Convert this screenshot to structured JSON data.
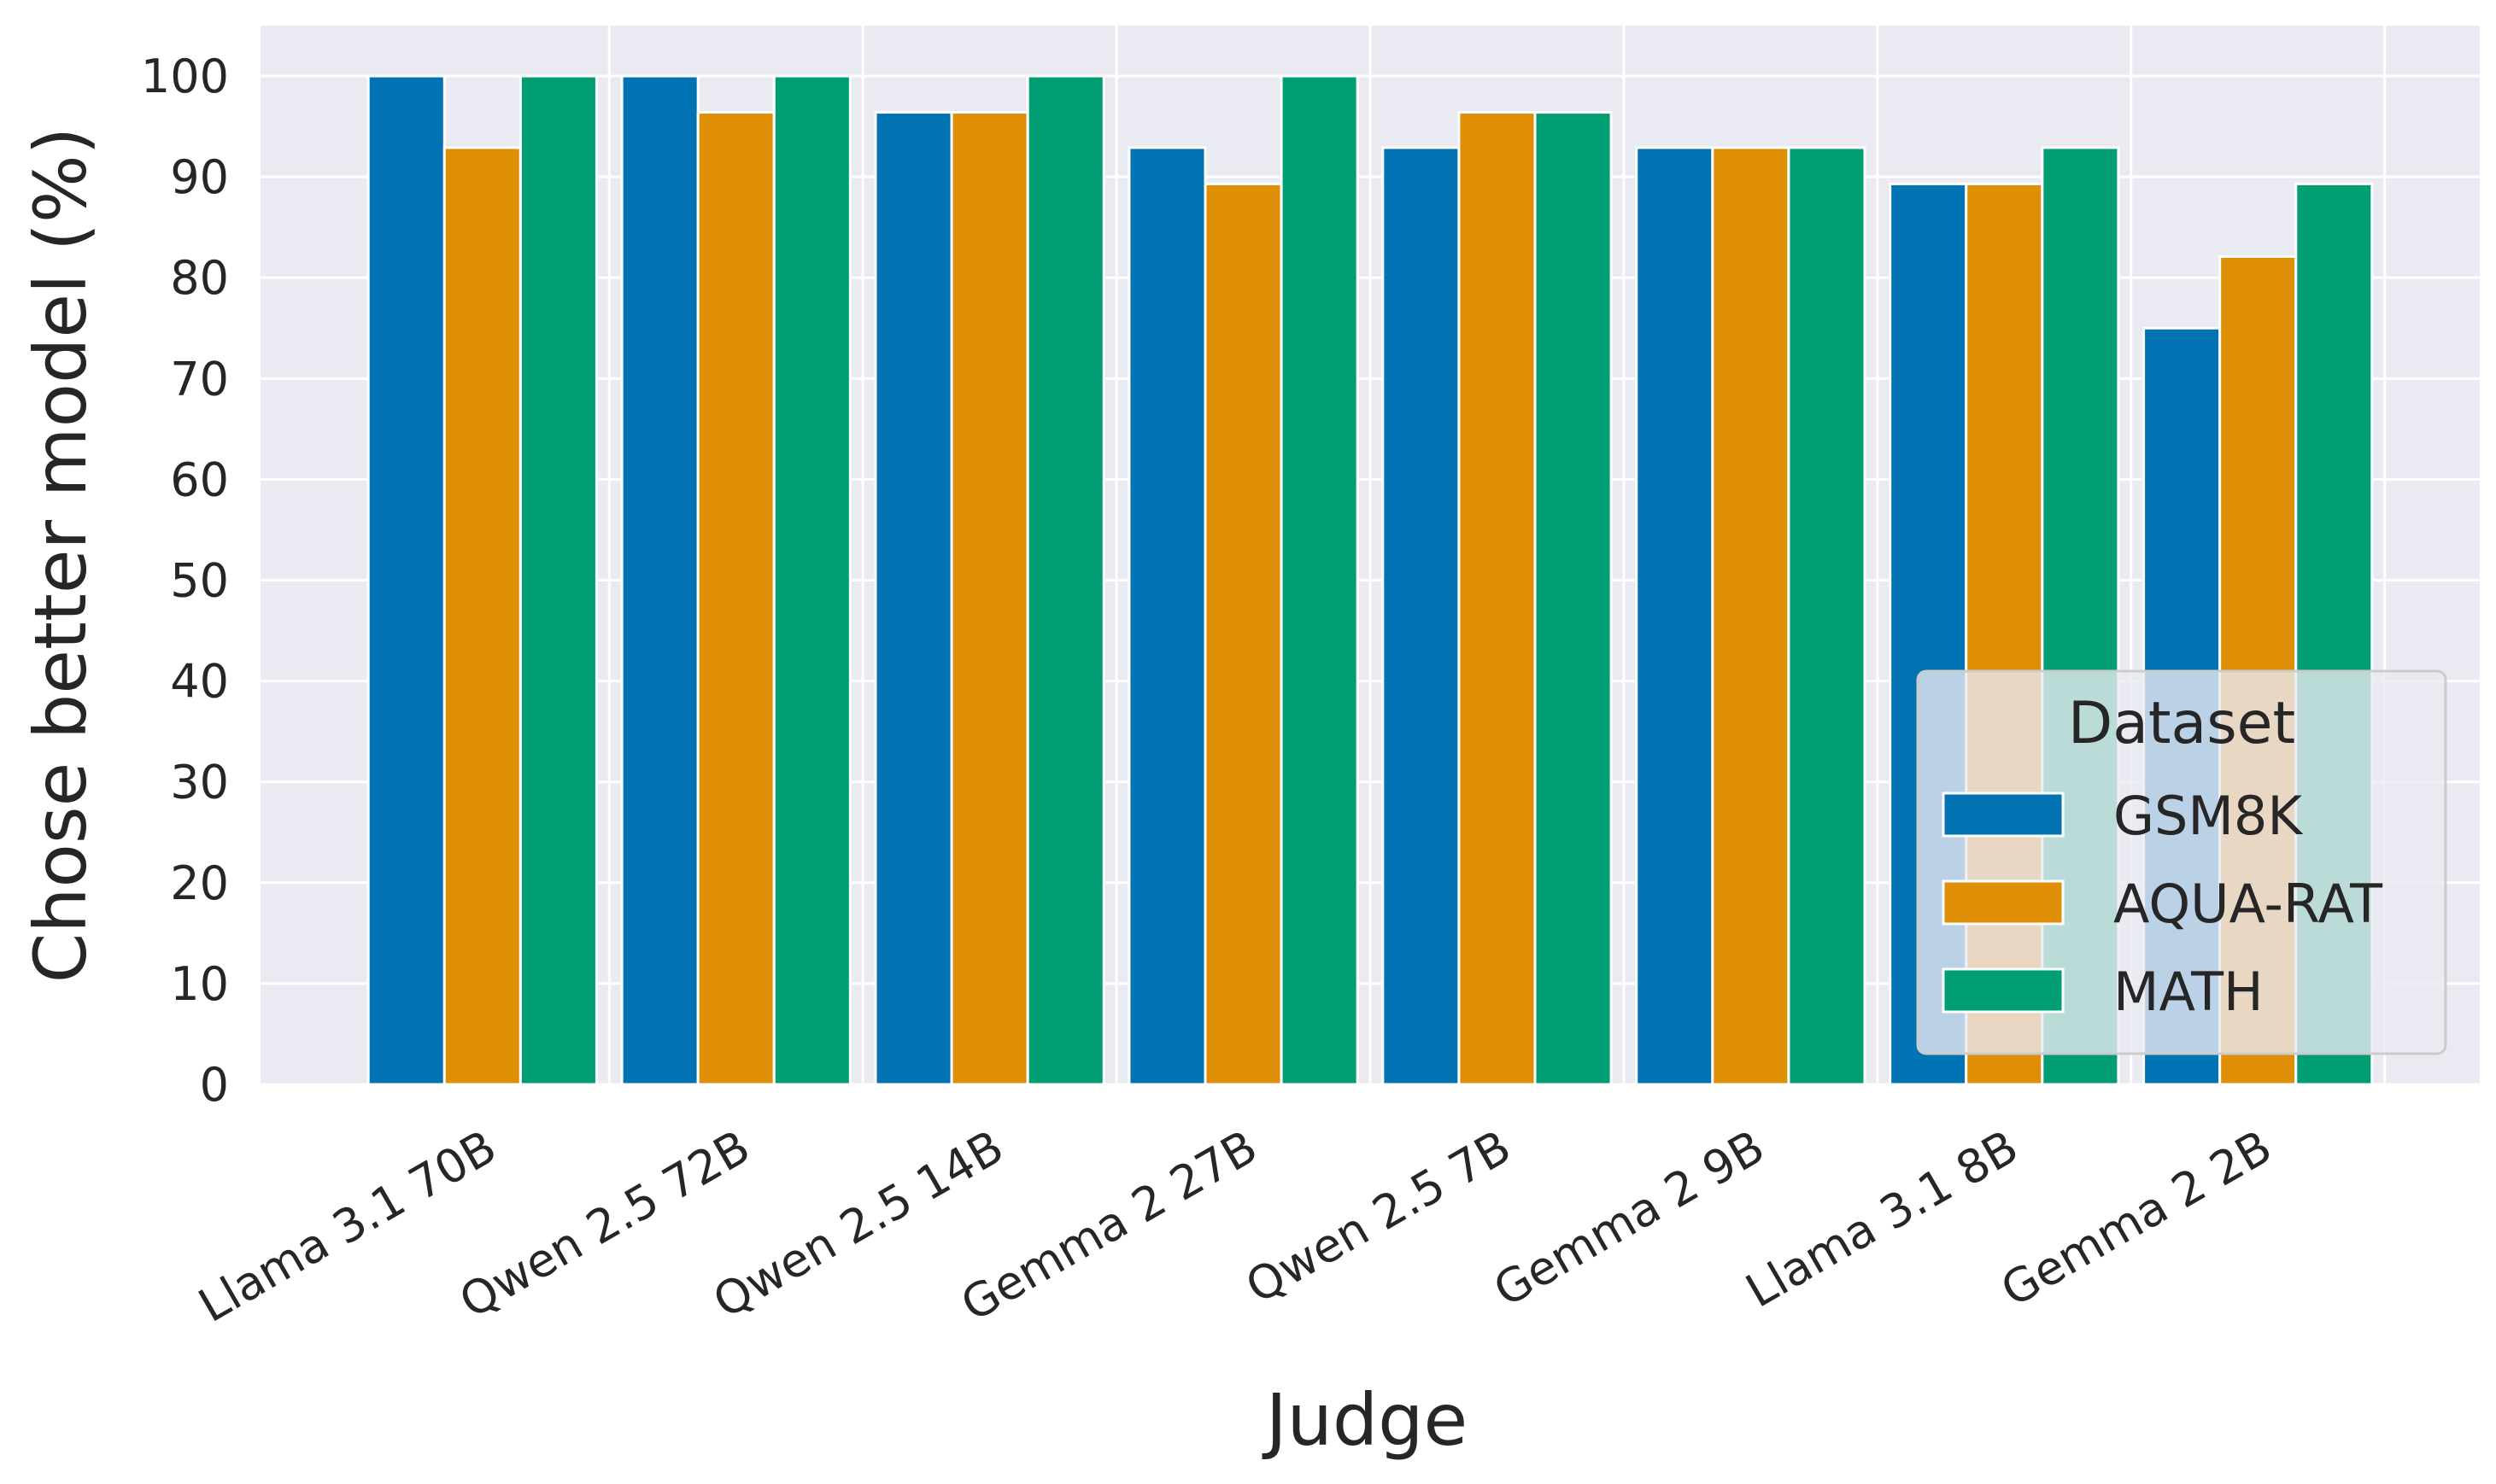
{
  "chart_data": {
    "type": "bar",
    "title": "",
    "xlabel": "Judge",
    "ylabel": "Chose better model (%)",
    "ylim": [
      0,
      105
    ],
    "yticks": [
      0,
      10,
      20,
      30,
      40,
      50,
      60,
      70,
      80,
      90,
      100
    ],
    "grid": true,
    "legend_title": "Dataset",
    "legend_position": "lower-right",
    "categories": [
      "Llama 3.1 70B",
      "Qwen 2.5 72B",
      "Qwen 2.5 14B",
      "Gemma 2 27B",
      "Qwen 2.5 7B",
      "Gemma 2 9B",
      "Llama 3.1 8B",
      "Gemma 2 2B"
    ],
    "series": [
      {
        "name": "GSM8K",
        "color": "#0173b2",
        "values": [
          100,
          100,
          96.4,
          92.9,
          92.9,
          92.9,
          89.3,
          75.0
        ]
      },
      {
        "name": "AQUA-RAT",
        "color": "#de8f05",
        "values": [
          92.9,
          96.4,
          96.4,
          89.3,
          96.4,
          92.9,
          89.3,
          82.1
        ]
      },
      {
        "name": "MATH",
        "color": "#029e73",
        "values": [
          100,
          100,
          100,
          100,
          96.4,
          92.9,
          92.9,
          89.3
        ]
      }
    ]
  }
}
